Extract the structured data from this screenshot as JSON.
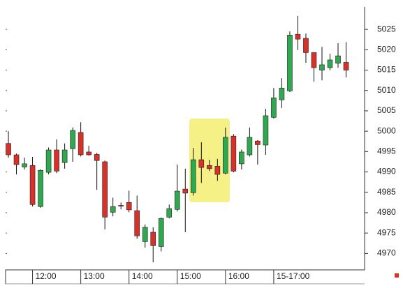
{
  "chart_data": {
    "type": "candlestick",
    "open": [
      4997,
      4994.2,
      4991.2,
      4991.6,
      4981.5,
      4989.9,
      4995.4,
      4992.3,
      4995.7,
      4999.7,
      4994.9,
      4994.3,
      4992.5,
      4980.1,
      4981.8,
      4982.5,
      4980.5,
      4972.9,
      4975.2,
      4971.7,
      4978.9,
      4980.8,
      4985.8,
      4984.9,
      4993,
      4991.6,
      4991.4,
      4989.7,
      4998.8,
      4992,
      4994.2,
      4997.6,
      4996.6,
      5003.4,
      5007.7,
      5009.9,
      5023.8,
      5022.8,
      5019.3,
      5015,
      5015.6,
      5016.7,
      5016.9
    ],
    "high": [
      5000,
      4994.5,
      4993.5,
      4993.7,
      4990.6,
      4996,
      4998,
      4997,
      5000.9,
      5002.2,
      4996.4,
      4994.7,
      4992.8,
      4983.7,
      4982.5,
      4985.4,
      4984.2,
      4977.1,
      4976.4,
      4978.8,
      4982,
      4991.8,
      4990.8,
      4995.9,
      4997.3,
      4993,
      4993.2,
      5000.9,
      4999.3,
      4995.5,
      5000.9,
      4997.8,
      5005.5,
      5010.6,
      5013,
      5024.5,
      5028.3,
      5024,
      5019.3,
      5020.7,
      5019,
      5021.6,
      5021.9
    ],
    "low": [
      4993.5,
      4989.4,
      4990.6,
      4981.5,
      4981.2,
      4989.4,
      4989.7,
      4990.8,
      4992.5,
      4993.8,
      4994,
      4985.6,
      4975.9,
      4979.1,
      4980.8,
      4980.1,
      4973.6,
      4971.4,
      4967.8,
      4970.5,
      4978.6,
      4980.3,
      4975.2,
      4984.2,
      4987.3,
      4990.2,
      4987.8,
      4989.4,
      4989.9,
      4990.6,
      4993.8,
      4991.8,
      4994.2,
      5003.1,
      5005.7,
      5009.6,
      5019.9,
      5016.8,
      5012.2,
      5012.5,
      5015,
      5015.6,
      5013.2
    ],
    "close": [
      4994.2,
      4991.8,
      4992,
      4982,
      4990.4,
      4995.4,
      4990.2,
      4995.4,
      5000.2,
      4994.2,
      4994.2,
      4992.8,
      4978.9,
      4981.5,
      4981.6,
      4980.7,
      4974.3,
      4976.4,
      4971.9,
      4978.6,
      4981,
      4985.3,
      4984.8,
      4993,
      4991.1,
      4990.8,
      4989.4,
      4998.5,
      4990.2,
      4994.9,
      4998.5,
      4996.7,
      5003.8,
      5008.2,
      5010.6,
      5023.6,
      5022.6,
      5019.3,
      5015.6,
      5016.3,
      5017.5,
      5018.5,
      5015
    ],
    "up_color": "#2fa84f",
    "down_color": "#d8312a",
    "xlim": [
      -0.35,
      44.3
    ],
    "xticks": [
      {
        "value": 3,
        "label": "12:00"
      },
      {
        "value": 9,
        "label": "13:00"
      },
      {
        "value": 15,
        "label": "14:00"
      },
      {
        "value": 21,
        "label": "15:00"
      },
      {
        "value": 27,
        "label": "16:00"
      },
      {
        "value": 33,
        "label": "15-17:00"
      }
    ],
    "ylim": [
      4966.3,
      5030.5
    ],
    "yticks": [
      4970,
      4975,
      4980,
      4985,
      4990,
      4995,
      5000,
      5005,
      5010,
      5015,
      5020,
      5025
    ]
  }
}
